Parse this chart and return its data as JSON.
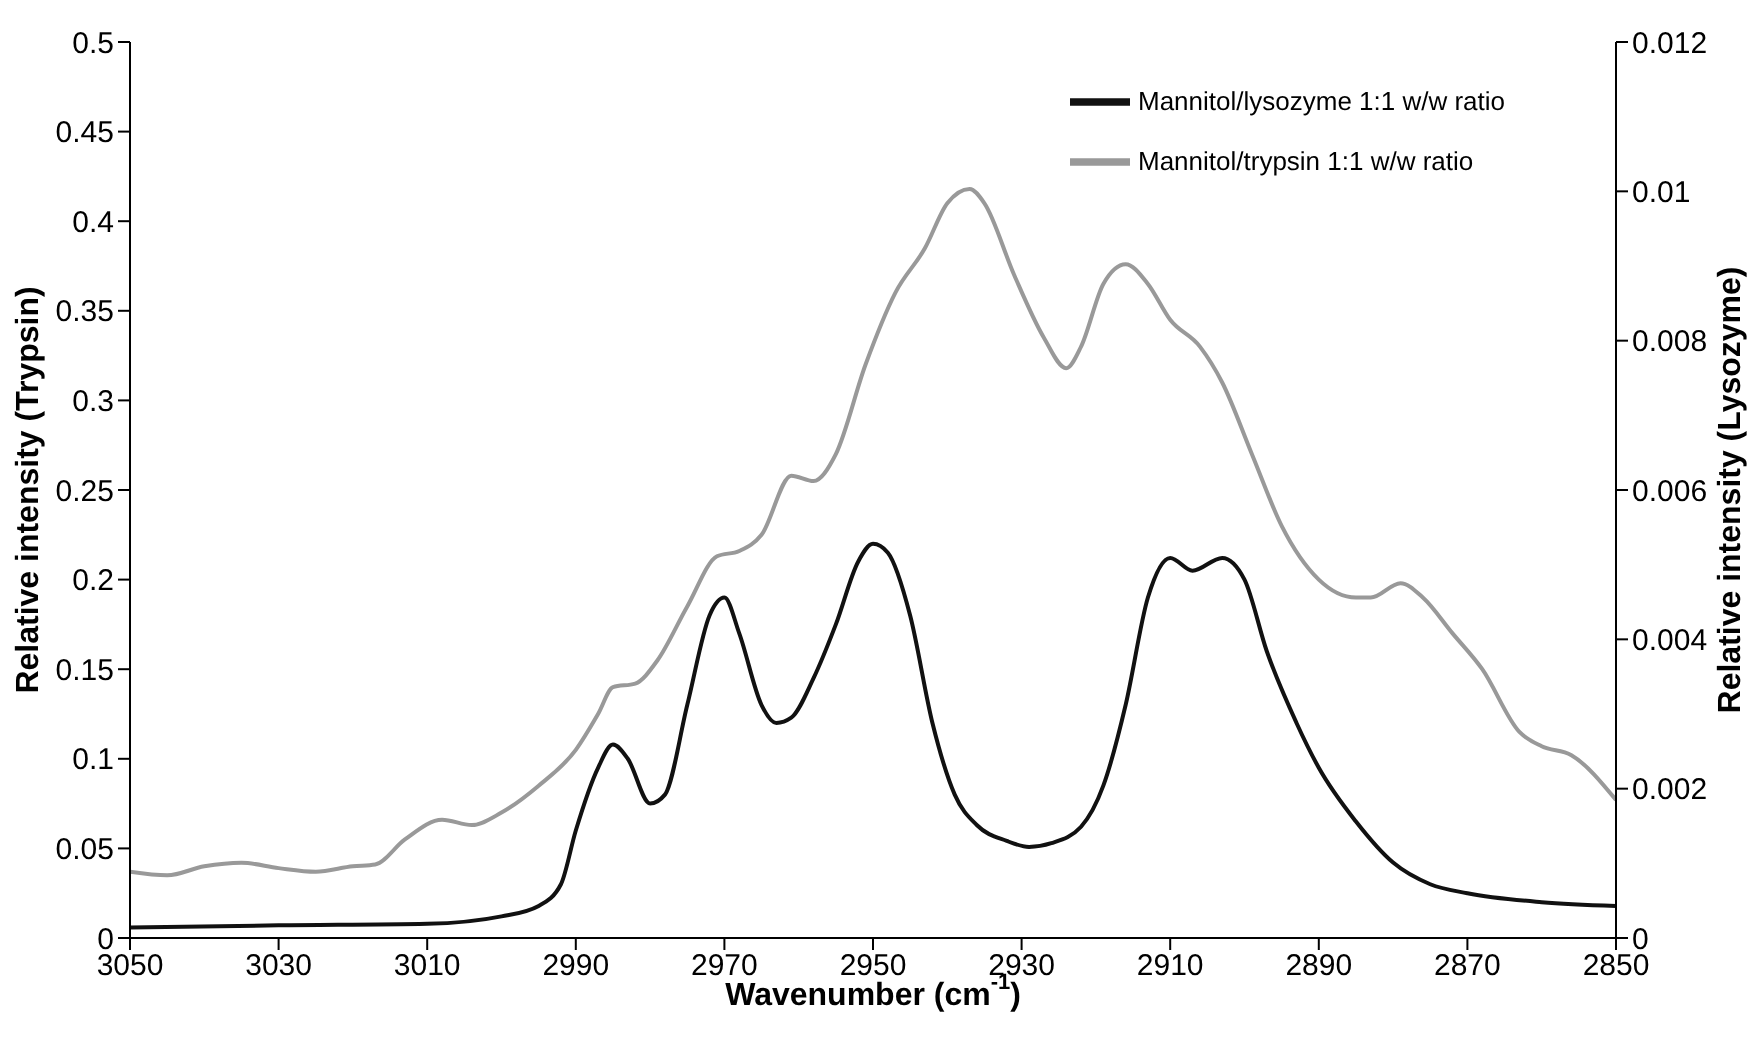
{
  "chart_data": {
    "type": "line",
    "xlabel": "Wavenumber (cm$^{-1}$)",
    "ylabel": "Relative intensity (Trypsin)",
    "y2label": "Relative intensity (Lysozyme)",
    "xlim": [
      3050,
      2850
    ],
    "xticks": [
      3050,
      3030,
      3010,
      2990,
      2970,
      2950,
      2930,
      2910,
      2890,
      2870,
      2850
    ],
    "ylim": [
      0,
      0.5
    ],
    "yticks": [
      0,
      0.05,
      0.1,
      0.15,
      0.2,
      0.25,
      0.3,
      0.35,
      0.4,
      0.45,
      0.5
    ],
    "y2lim": [
      0,
      0.012
    ],
    "y2ticks": [
      0,
      0.002,
      0.004,
      0.006,
      0.008,
      0.01,
      0.012
    ],
    "grid": false,
    "legend": "top right",
    "marker": "none",
    "line_style": "solid",
    "series": [
      {
        "name": "Mannitol/lysozyme 1:1 w/w ratio",
        "color": "#111111",
        "axis": "y2",
        "x": [
          3050,
          3030,
          3010,
          3000,
          2995,
          2992,
          2990,
          2987,
          2985,
          2983,
          2980,
          2978,
          2975,
          2972,
          2970,
          2968,
          2965,
          2963,
          2961,
          2958,
          2955,
          2952,
          2950,
          2948,
          2945,
          2942,
          2939,
          2936,
          2932,
          2929,
          2926,
          2922,
          2919,
          2916,
          2913,
          2910,
          2907,
          2903,
          2900,
          2897,
          2893,
          2890,
          2885,
          2880,
          2875,
          2870,
          2860,
          2850
        ],
        "values": [
          0.00014,
          0.00017,
          0.00019,
          0.00029,
          0.00043,
          0.00072,
          0.00144,
          0.00228,
          0.00259,
          0.0024,
          0.0018,
          0.00192,
          0.00312,
          0.00432,
          0.00456,
          0.00408,
          0.00312,
          0.00288,
          0.00295,
          0.00348,
          0.0042,
          0.00504,
          0.00528,
          0.00516,
          0.00432,
          0.00288,
          0.00192,
          0.00151,
          0.0013,
          0.00122,
          0.00127,
          0.00149,
          0.00204,
          0.00312,
          0.00456,
          0.00509,
          0.00492,
          0.00509,
          0.0048,
          0.00384,
          0.00288,
          0.00228,
          0.00156,
          0.00101,
          0.00072,
          0.0006,
          0.00048,
          0.00043
        ]
      },
      {
        "name": "Mannitol/trypsin 1:1 w/w ratio",
        "color": "#999999",
        "x": [
          3050,
          3045,
          3040,
          3035,
          3030,
          3025,
          3020,
          3017,
          3013,
          3008,
          3004,
          3000,
          2995,
          2990,
          2987,
          2985,
          2982,
          2979,
          2975,
          2971,
          2968,
          2965,
          2961,
          2958,
          2955,
          2951,
          2947,
          2943,
          2940,
          2937,
          2935,
          2931,
          2927,
          2924,
          2922,
          2919,
          2916,
          2913,
          2910,
          2906,
          2903,
          2899,
          2895,
          2890,
          2885,
          2883,
          2879,
          2876,
          2872,
          2868,
          2863,
          2860,
          2856,
          2850
        ],
        "values": [
          0.037,
          0.035,
          0.04,
          0.042,
          0.039,
          0.037,
          0.04,
          0.041,
          0.055,
          0.066,
          0.063,
          0.07,
          0.085,
          0.105,
          0.125,
          0.14,
          0.142,
          0.155,
          0.185,
          0.213,
          0.216,
          0.225,
          0.258,
          0.255,
          0.27,
          0.32,
          0.36,
          0.385,
          0.41,
          0.418,
          0.41,
          0.37,
          0.335,
          0.318,
          0.33,
          0.365,
          0.376,
          0.365,
          0.345,
          0.33,
          0.31,
          0.27,
          0.23,
          0.2,
          0.19,
          0.19,
          0.198,
          0.19,
          0.17,
          0.15,
          0.115,
          0.107,
          0.102,
          0.077
        ]
      }
    ]
  }
}
